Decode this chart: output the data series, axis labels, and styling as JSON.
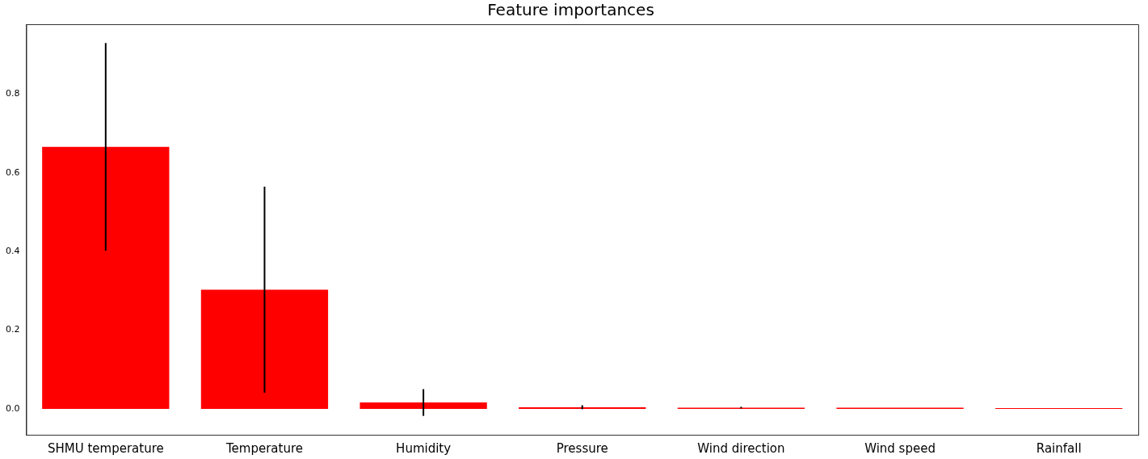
{
  "chart_data": {
    "type": "bar",
    "title": "Feature importances",
    "categories": [
      "SHMU temperature",
      "Temperature",
      "Humidity",
      "Pressure",
      "Wind direction",
      "Wind speed",
      "Rainfall"
    ],
    "values": [
      0.666,
      0.303,
      0.016,
      0.004,
      0.003,
      0.003,
      0.001
    ],
    "errors": [
      0.264,
      0.262,
      0.034,
      0.005,
      0.002,
      null,
      null
    ],
    "color": "#ff0000",
    "ylim": [
      -0.066,
      0.978
    ],
    "yticks": [
      {
        "value": 0,
        "label": "0.0"
      },
      0.2,
      0.4,
      0.6,
      0.8
    ],
    "grid": false,
    "legend": false
  }
}
